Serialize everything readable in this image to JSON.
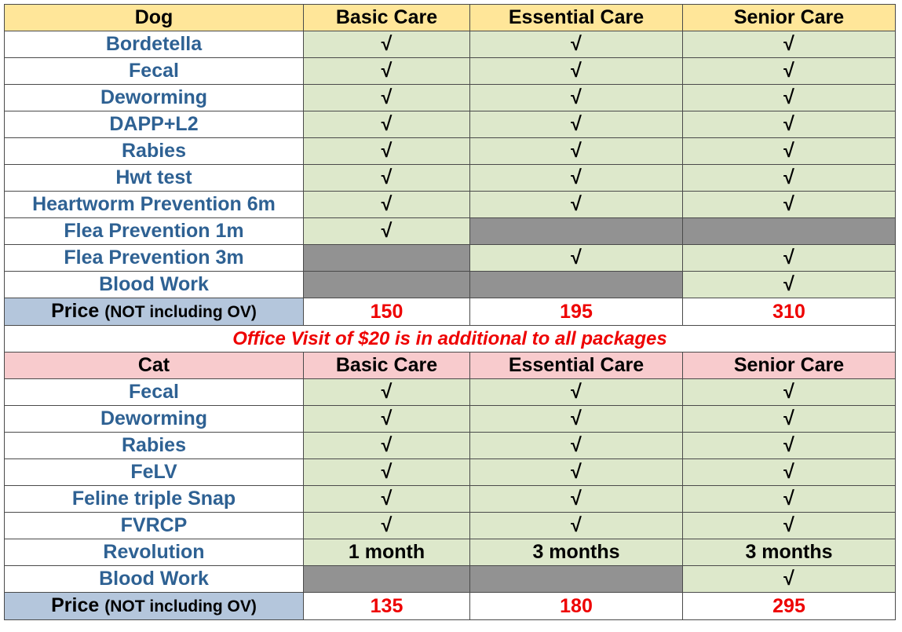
{
  "dog": {
    "header": [
      "Dog",
      "Basic Care",
      "Essential Care",
      "Senior Care"
    ],
    "rows": [
      {
        "label": "Bordetella",
        "cells": [
          "√",
          "√",
          "√"
        ]
      },
      {
        "label": "Fecal",
        "cells": [
          "√",
          "√",
          "√"
        ]
      },
      {
        "label": "Deworming",
        "cells": [
          "√",
          "√",
          "√"
        ]
      },
      {
        "label": "DAPP+L2",
        "cells": [
          "√",
          "√",
          "√"
        ]
      },
      {
        "label": "Rabies",
        "cells": [
          "√",
          "√",
          "√"
        ]
      },
      {
        "label": "Hwt test",
        "cells": [
          "√",
          "√",
          "√"
        ]
      },
      {
        "label": "Heartworm Prevention 6m",
        "cells": [
          "√",
          "√",
          "√"
        ]
      },
      {
        "label": "Flea Prevention 1m",
        "cells": [
          "√",
          "",
          ""
        ]
      },
      {
        "label": "Flea Prevention 3m",
        "cells": [
          "",
          "√",
          "√"
        ]
      },
      {
        "label": "Blood Work",
        "cells": [
          "",
          "",
          "√"
        ]
      }
    ],
    "price_label": "Price",
    "price_note": "(NOT including OV)",
    "prices": [
      "150",
      "195",
      "310"
    ]
  },
  "notice": "Office Visit of $20 is in additional to all packages",
  "cat": {
    "header": [
      "Cat",
      "Basic Care",
      "Essential Care",
      "Senior Care"
    ],
    "rows": [
      {
        "label": "Fecal",
        "cells": [
          "√",
          "√",
          "√"
        ]
      },
      {
        "label": "Deworming",
        "cells": [
          "√",
          "√",
          "√"
        ]
      },
      {
        "label": "Rabies",
        "cells": [
          "√",
          "√",
          "√"
        ]
      },
      {
        "label": "FeLV",
        "cells": [
          "√",
          "√",
          "√"
        ]
      },
      {
        "label": "Feline triple Snap",
        "cells": [
          "√",
          "√",
          "√"
        ]
      },
      {
        "label": "FVRCP",
        "cells": [
          "√",
          "√",
          "√"
        ]
      },
      {
        "label": "Revolution",
        "cells": [
          "1 month",
          "3 months",
          "3 months"
        ]
      },
      {
        "label": "Blood Work",
        "cells": [
          "",
          "",
          "√"
        ]
      }
    ],
    "price_label": "Price",
    "price_note": "(NOT including OV)",
    "prices": [
      "135",
      "180",
      "295"
    ]
  },
  "colors": {
    "header_dog": "#ffe699",
    "header_cat": "#f8cbcd",
    "included_cell": "#dde8cb",
    "excluded_cell": "#929292",
    "row_label_text": "#2e6193",
    "price_label_bg": "#b4c6dc",
    "price_text": "#ee0000"
  }
}
